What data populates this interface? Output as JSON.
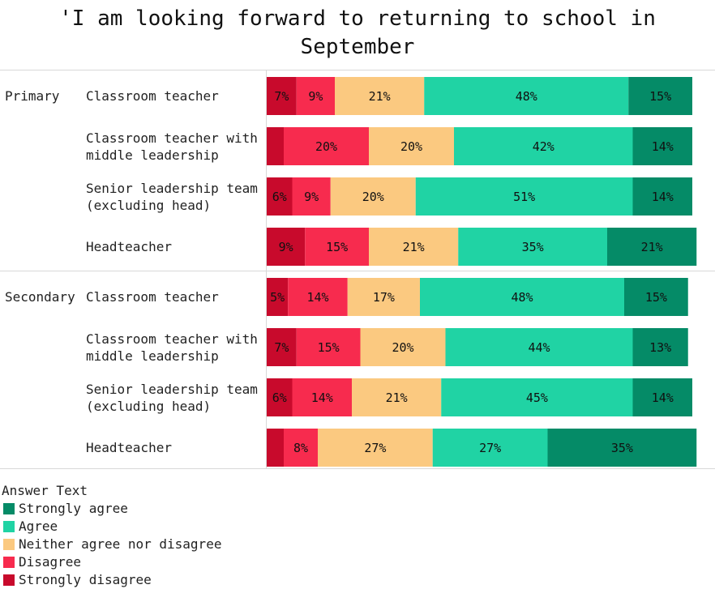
{
  "chart_data": {
    "type": "stacked_barh",
    "title": "'I am looking forward to returning to school in September",
    "groups": [
      "Primary",
      null,
      null,
      null,
      "Secondary",
      null,
      null,
      null
    ],
    "categories": [
      "Classroom teacher",
      "Classroom teacher with middle leadership",
      "Senior leadership team (excluding head)",
      "Headteacher",
      "Classroom teacher",
      "Classroom teacher with middle leadership",
      "Senior leadership team (excluding head)",
      "Headteacher"
    ],
    "xlim": [
      0,
      100
    ],
    "legend_title": "Answer Text",
    "series": [
      {
        "name": "Strongly disagree",
        "color": "#c80a2c",
        "values": [
          7,
          4,
          6,
          9,
          5,
          7,
          6,
          4
        ],
        "value_labels": [
          "7%",
          null,
          "6%",
          "9%",
          "5%",
          "7%",
          "6%",
          null
        ]
      },
      {
        "name": "Disagree",
        "color": "#f72b4e",
        "values": [
          9,
          20,
          9,
          15,
          14,
          15,
          14,
          8
        ],
        "value_labels": [
          "9%",
          "20%",
          "9%",
          "15%",
          "14%",
          "15%",
          "14%",
          "8%"
        ]
      },
      {
        "name": "Neither agree nor disagree",
        "color": "#fbc980",
        "values": [
          21,
          20,
          20,
          21,
          17,
          20,
          21,
          27
        ],
        "value_labels": [
          "21%",
          "20%",
          "20%",
          "21%",
          "17%",
          "20%",
          "21%",
          "27%"
        ]
      },
      {
        "name": "Agree",
        "color": "#20d3a4",
        "values": [
          48,
          42,
          51,
          35,
          48,
          44,
          45,
          27
        ],
        "value_labels": [
          "48%",
          "42%",
          "51%",
          "35%",
          "48%",
          "44%",
          "45%",
          "27%"
        ]
      },
      {
        "name": "Strongly agree",
        "color": "#058b67",
        "values": [
          15,
          14,
          14,
          21,
          15,
          13,
          14,
          35
        ],
        "value_labels": [
          "15%",
          "14%",
          "14%",
          "21%",
          "15%",
          "13%",
          "14%",
          "35%"
        ]
      }
    ]
  }
}
